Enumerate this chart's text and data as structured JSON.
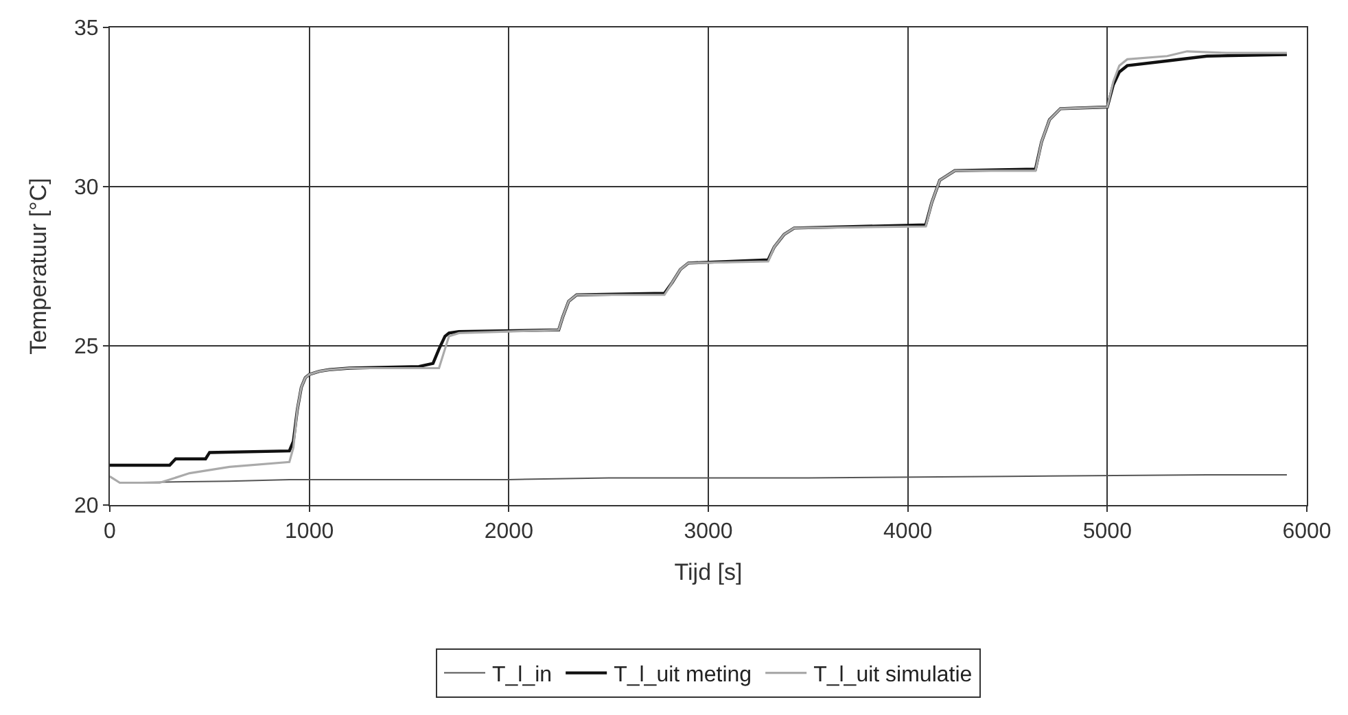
{
  "chart_data": {
    "type": "line",
    "xlabel": "Tijd [s]",
    "ylabel": "Temperatuur [°C]",
    "xlim": [
      0,
      6000
    ],
    "xticks": [
      0,
      1000,
      2000,
      3000,
      4000,
      5000,
      6000
    ],
    "ylim": [
      20,
      35
    ],
    "yticks": [
      20,
      25,
      30,
      35
    ],
    "grid": true,
    "legend": "bottom",
    "marker": "none",
    "line_style": "solid",
    "series": [
      {
        "name": "T_l_in",
        "color": "#555555",
        "x": [
          0,
          50,
          600,
          900,
          2000,
          2500,
          3500,
          4500,
          5500,
          5900
        ],
        "values": [
          20.9,
          20.7,
          20.75,
          20.8,
          20.8,
          20.85,
          20.85,
          20.9,
          20.95,
          20.95
        ]
      },
      {
        "name": "T_l_uit meting",
        "color": "#111111",
        "x": [
          0,
          300,
          330,
          480,
          500,
          900,
          920,
          940,
          960,
          980,
          1000,
          1050,
          1100,
          1200,
          1550,
          1620,
          1650,
          1680,
          1700,
          1750,
          2250,
          2270,
          2300,
          2340,
          2780,
          2820,
          2860,
          2900,
          3300,
          3330,
          3380,
          3430,
          4090,
          4120,
          4160,
          4235,
          4640,
          4670,
          4710,
          4765,
          5000,
          5030,
          5060,
          5100,
          5300,
          5500,
          5900
        ],
        "values": [
          21.25,
          21.25,
          21.45,
          21.45,
          21.65,
          21.7,
          22.0,
          23.0,
          23.7,
          24.0,
          24.1,
          24.2,
          24.25,
          24.3,
          24.35,
          24.45,
          24.9,
          25.3,
          25.4,
          25.45,
          25.5,
          25.9,
          26.4,
          26.6,
          26.65,
          27.0,
          27.4,
          27.6,
          27.7,
          28.1,
          28.5,
          28.7,
          28.8,
          29.5,
          30.2,
          30.5,
          30.55,
          31.4,
          32.1,
          32.45,
          32.5,
          33.2,
          33.6,
          33.8,
          33.95,
          34.1,
          34.15
        ]
      },
      {
        "name": "T_l_uit simulatie",
        "color": "#aaaaaa",
        "x": [
          0,
          50,
          250,
          400,
          600,
          900,
          920,
          940,
          960,
          980,
          1000,
          1050,
          1100,
          1200,
          1650,
          1680,
          1700,
          1750,
          2250,
          2270,
          2300,
          2340,
          2780,
          2820,
          2860,
          2900,
          3300,
          3330,
          3380,
          3430,
          4090,
          4120,
          4160,
          4235,
          4640,
          4670,
          4710,
          4765,
          5000,
          5030,
          5060,
          5100,
          5300,
          5400,
          5600,
          5900
        ],
        "values": [
          20.9,
          20.7,
          20.7,
          21.0,
          21.2,
          21.35,
          21.8,
          23.0,
          23.7,
          24.0,
          24.1,
          24.2,
          24.25,
          24.3,
          24.3,
          24.9,
          25.3,
          25.4,
          25.5,
          25.9,
          26.4,
          26.6,
          26.6,
          27.0,
          27.4,
          27.6,
          27.65,
          28.1,
          28.5,
          28.7,
          28.75,
          29.5,
          30.2,
          30.5,
          30.5,
          31.4,
          32.1,
          32.45,
          32.5,
          33.3,
          33.8,
          34.0,
          34.1,
          34.25,
          34.2,
          34.2
        ]
      }
    ]
  }
}
